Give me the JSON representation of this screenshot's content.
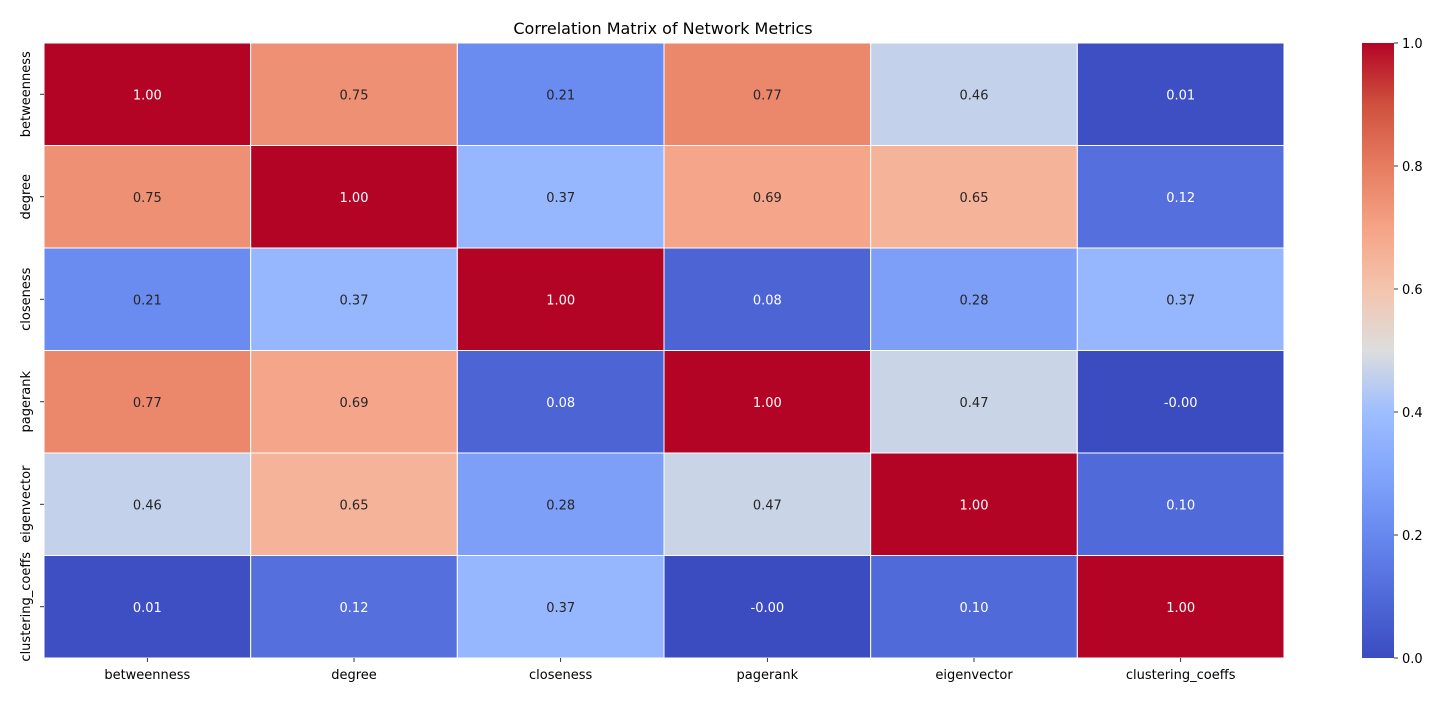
{
  "chart_data": {
    "type": "heatmap",
    "title": "Correlation Matrix of Network Metrics",
    "xlabel": "",
    "ylabel": "",
    "row_labels": [
      "betweenness",
      "degree",
      "closeness",
      "pagerank",
      "eigenvector",
      "clustering_coeffs"
    ],
    "col_labels": [
      "betweenness",
      "degree",
      "closeness",
      "pagerank",
      "eigenvector",
      "clustering_coeffs"
    ],
    "values": [
      [
        1.0,
        0.75,
        0.21,
        0.77,
        0.46,
        0.01
      ],
      [
        0.75,
        1.0,
        0.37,
        0.69,
        0.65,
        0.12
      ],
      [
        0.21,
        0.37,
        1.0,
        0.08,
        0.28,
        0.37
      ],
      [
        0.77,
        0.69,
        0.08,
        1.0,
        0.47,
        -0.0
      ],
      [
        0.46,
        0.65,
        0.28,
        0.47,
        1.0,
        0.1
      ],
      [
        0.01,
        0.12,
        0.37,
        -0.0,
        0.1,
        1.0
      ]
    ],
    "cell_labels": [
      [
        "1.00",
        "0.75",
        "0.21",
        "0.77",
        "0.46",
        "0.01"
      ],
      [
        "0.75",
        "1.00",
        "0.37",
        "0.69",
        "0.65",
        "0.12"
      ],
      [
        "0.21",
        "0.37",
        "1.00",
        "0.08",
        "0.28",
        "0.37"
      ],
      [
        "0.77",
        "0.69",
        "0.08",
        "1.00",
        "0.47",
        "-0.00"
      ],
      [
        "0.46",
        "0.65",
        "0.28",
        "0.47",
        "1.00",
        "0.10"
      ],
      [
        "0.01",
        "0.12",
        "0.37",
        "-0.00",
        "0.10",
        "1.00"
      ]
    ],
    "colormap": "coolwarm",
    "vmin": 0.0,
    "vmax": 1.0,
    "colorbar_ticks": [
      "0.0",
      "0.2",
      "0.4",
      "0.6",
      "0.8",
      "1.0"
    ],
    "grid": false,
    "colors": {
      "low": "#3b4cc0",
      "mid": "#dddddd",
      "high": "#b40426",
      "cell_border": "#ffffff"
    }
  }
}
